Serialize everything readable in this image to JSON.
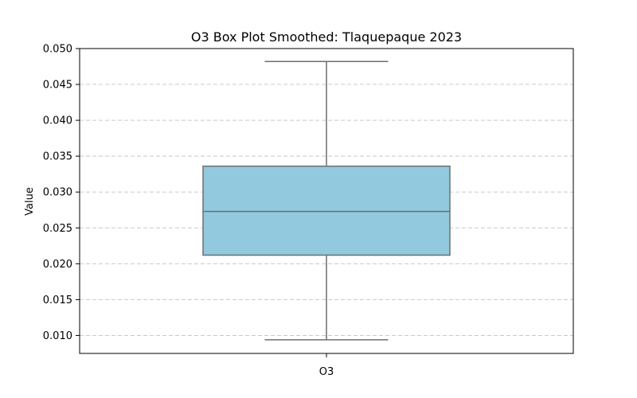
{
  "chart_data": {
    "type": "box",
    "title": "O3 Box Plot Smoothed: Tlaquepaque 2023",
    "xlabel": "",
    "ylabel": "Value",
    "ylim": [
      0.0075,
      0.05
    ],
    "yticks": [
      "0.010",
      "0.015",
      "0.020",
      "0.025",
      "0.030",
      "0.035",
      "0.040",
      "0.045",
      "0.050"
    ],
    "grid": "y-dashed",
    "categories": [
      "O3"
    ],
    "boxes": [
      {
        "category": "O3",
        "whisker_low": 0.0094,
        "q1": 0.0212,
        "median": 0.0273,
        "q3": 0.0336,
        "whisker_high": 0.0482,
        "fill_color": "#93c9de",
        "line_color": "#6e6e6e"
      }
    ]
  }
}
